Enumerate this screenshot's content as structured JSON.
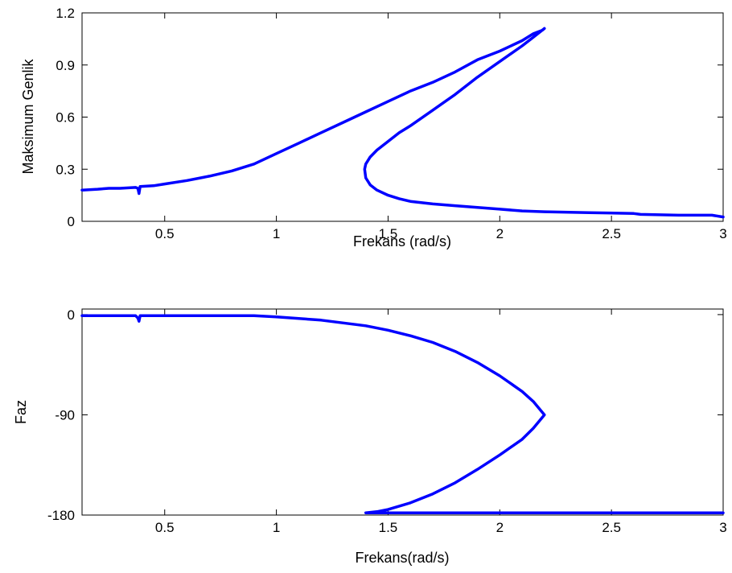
{
  "colors": {
    "background": "#ffffff",
    "line": "#0000ff",
    "axes": "#000000"
  },
  "chart_data": [
    {
      "type": "line",
      "title": "",
      "xlabel": "Frekans (rad/s)",
      "ylabel": "Maksimum Genlik",
      "xlim": [
        0.13,
        3.0
      ],
      "ylim": [
        0,
        1.2
      ],
      "xticks": [
        "0.5",
        "1",
        "1.5",
        "2",
        "2.5",
        "3"
      ],
      "yticks": [
        "0",
        "0.3",
        "0.6",
        "0.9",
        "1.2"
      ],
      "grid": false,
      "series": [
        {
          "color": "#0000ff",
          "x": [
            0.13,
            0.2,
            0.25,
            0.3,
            0.37,
            0.38,
            0.385,
            0.39,
            0.45,
            0.5,
            0.6,
            0.7,
            0.8,
            0.9,
            1.0,
            1.1,
            1.2,
            1.3,
            1.4,
            1.5,
            1.6,
            1.7,
            1.8,
            1.9,
            2.0,
            2.1,
            2.15,
            2.19,
            2.2,
            2.15,
            2.1,
            2.0,
            1.9,
            1.8,
            1.7,
            1.6,
            1.55,
            1.5,
            1.45,
            1.42,
            1.4,
            1.395,
            1.4,
            1.42,
            1.45,
            1.5,
            1.55,
            1.6,
            1.7,
            1.8,
            1.9,
            2.0,
            2.1,
            2.2,
            2.4,
            2.6,
            2.63,
            2.8,
            2.95,
            3.0
          ],
          "y": [
            0.18,
            0.185,
            0.19,
            0.19,
            0.195,
            0.19,
            0.16,
            0.2,
            0.205,
            0.215,
            0.235,
            0.26,
            0.29,
            0.33,
            0.39,
            0.45,
            0.51,
            0.57,
            0.63,
            0.69,
            0.75,
            0.8,
            0.86,
            0.93,
            0.98,
            1.04,
            1.08,
            1.1,
            1.11,
            1.06,
            1.01,
            0.92,
            0.83,
            0.73,
            0.64,
            0.55,
            0.51,
            0.46,
            0.41,
            0.37,
            0.33,
            0.3,
            0.25,
            0.21,
            0.18,
            0.15,
            0.13,
            0.115,
            0.1,
            0.09,
            0.08,
            0.07,
            0.06,
            0.055,
            0.05,
            0.045,
            0.04,
            0.035,
            0.035,
            0.025
          ]
        }
      ]
    },
    {
      "type": "line",
      "title": "",
      "xlabel": "Frekans(rad/s)",
      "ylabel": "Faz",
      "xlim": [
        0.13,
        3.0
      ],
      "ylim": [
        -180,
        5
      ],
      "xticks": [
        "0.5",
        "1",
        "1.5",
        "2",
        "2.5",
        "3"
      ],
      "yticks": [
        "-180",
        "-90",
        "0"
      ],
      "grid": false,
      "series": [
        {
          "color": "#0000ff",
          "x": [
            0.13,
            0.3,
            0.37,
            0.38,
            0.385,
            0.39,
            0.5,
            0.7,
            0.9,
            1.0,
            1.2,
            1.4,
            1.5,
            1.6,
            1.7,
            1.8,
            1.9,
            2.0,
            2.1,
            2.15,
            2.2,
            2.15,
            2.1,
            2.0,
            1.9,
            1.8,
            1.7,
            1.6,
            1.5,
            1.45,
            1.4,
            1.6,
            2.0,
            2.5,
            3.0
          ],
          "y": [
            -1,
            -1,
            -1,
            -3,
            -6,
            -1,
            -1,
            -1,
            -1,
            -2,
            -5,
            -10,
            -14,
            -19,
            -25,
            -33,
            -43,
            -55,
            -69,
            -78,
            -90,
            -102,
            -112,
            -126,
            -139,
            -151,
            -161,
            -169,
            -175,
            -177,
            -178,
            -178,
            -178,
            -178,
            -178
          ]
        }
      ]
    }
  ]
}
